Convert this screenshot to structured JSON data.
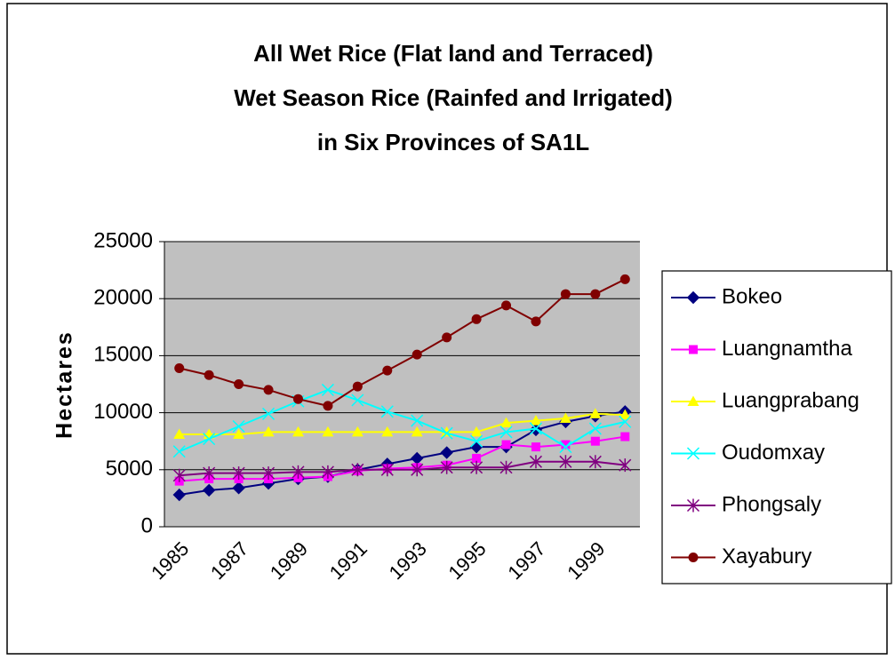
{
  "chart_data": {
    "type": "line",
    "title": [
      "All Wet Rice (Flat land and Terraced)",
      "Wet Season Rice (Rainfed and Irrigated)",
      "in Six Provinces of SA1L"
    ],
    "y_label": "Hectares",
    "categories": [
      "1985",
      null,
      "1987",
      null,
      "1989",
      null,
      "1991",
      null,
      "1993",
      null,
      "1995",
      null,
      "1997",
      null,
      "1999",
      null
    ],
    "ylim": [
      0,
      25000
    ],
    "yticks": [
      0,
      5000,
      10000,
      15000,
      20000,
      25000
    ],
    "grid": true,
    "legend": "right",
    "series": [
      {
        "name": "Bokeo",
        "color": "#000080",
        "marker": "diamond",
        "values": [
          2800,
          3200,
          3400,
          3800,
          4200,
          4400,
          5000,
          5500,
          6000,
          6500,
          7000,
          7000,
          8500,
          9200,
          9700,
          10100
        ]
      },
      {
        "name": "Luangnamtha",
        "color": "#ff00ff",
        "marker": "square",
        "values": [
          4000,
          4200,
          4200,
          4200,
          4300,
          4400,
          4900,
          5100,
          5200,
          5400,
          6000,
          7200,
          7000,
          7200,
          7500,
          7900
        ]
      },
      {
        "name": "Luangprabang",
        "color": "#ffff00",
        "marker": "triangle",
        "values": [
          8100,
          8100,
          8100,
          8300,
          8300,
          8300,
          8300,
          8300,
          8300,
          8300,
          8300,
          9100,
          9300,
          9500,
          9900,
          9800
        ]
      },
      {
        "name": "Oudomxay",
        "color": "#00ffff",
        "marker": "x",
        "values": [
          6600,
          7700,
          8800,
          9900,
          11000,
          12000,
          11100,
          10100,
          9300,
          8200,
          7500,
          8300,
          8600,
          7000,
          8600,
          9200
        ]
      },
      {
        "name": "Phongsaly",
        "color": "#800080",
        "marker": "star",
        "values": [
          4500,
          4700,
          4700,
          4700,
          4800,
          4800,
          5000,
          5000,
          5000,
          5200,
          5200,
          5200,
          5700,
          5700,
          5700,
          5400
        ]
      },
      {
        "name": "Xayabury",
        "color": "#800000",
        "marker": "circle",
        "values": [
          13900,
          13300,
          12500,
          12000,
          11200,
          10600,
          12300,
          13700,
          15100,
          16600,
          18200,
          19400,
          18000,
          20400,
          20400,
          21700
        ]
      }
    ]
  }
}
